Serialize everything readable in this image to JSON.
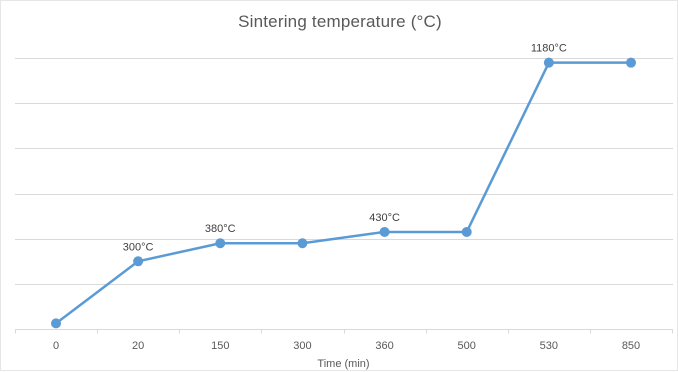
{
  "chart_data": {
    "type": "line",
    "title": "Sintering temperature (°C)",
    "xlabel": "Time (min)",
    "ylabel": "",
    "categories": [
      "0",
      "20",
      "150",
      "300",
      "360",
      "500",
      "530",
      "850"
    ],
    "series": [
      {
        "values": [
          25,
          300,
          380,
          380,
          430,
          430,
          1180,
          1180
        ],
        "color": "#5b9bd5"
      }
    ],
    "data_labels": [
      {
        "index": 1,
        "text": "300°C"
      },
      {
        "index": 2,
        "text": "380°C"
      },
      {
        "index": 4,
        "text": "430°C"
      },
      {
        "index": 6,
        "text": "1180°C"
      }
    ],
    "ylim": [
      0,
      1400
    ],
    "y_gridlines": [
      0,
      200,
      400,
      600,
      800,
      1000,
      1200
    ],
    "y_tick_labels_shown": false,
    "grid": true,
    "legend": "none"
  }
}
